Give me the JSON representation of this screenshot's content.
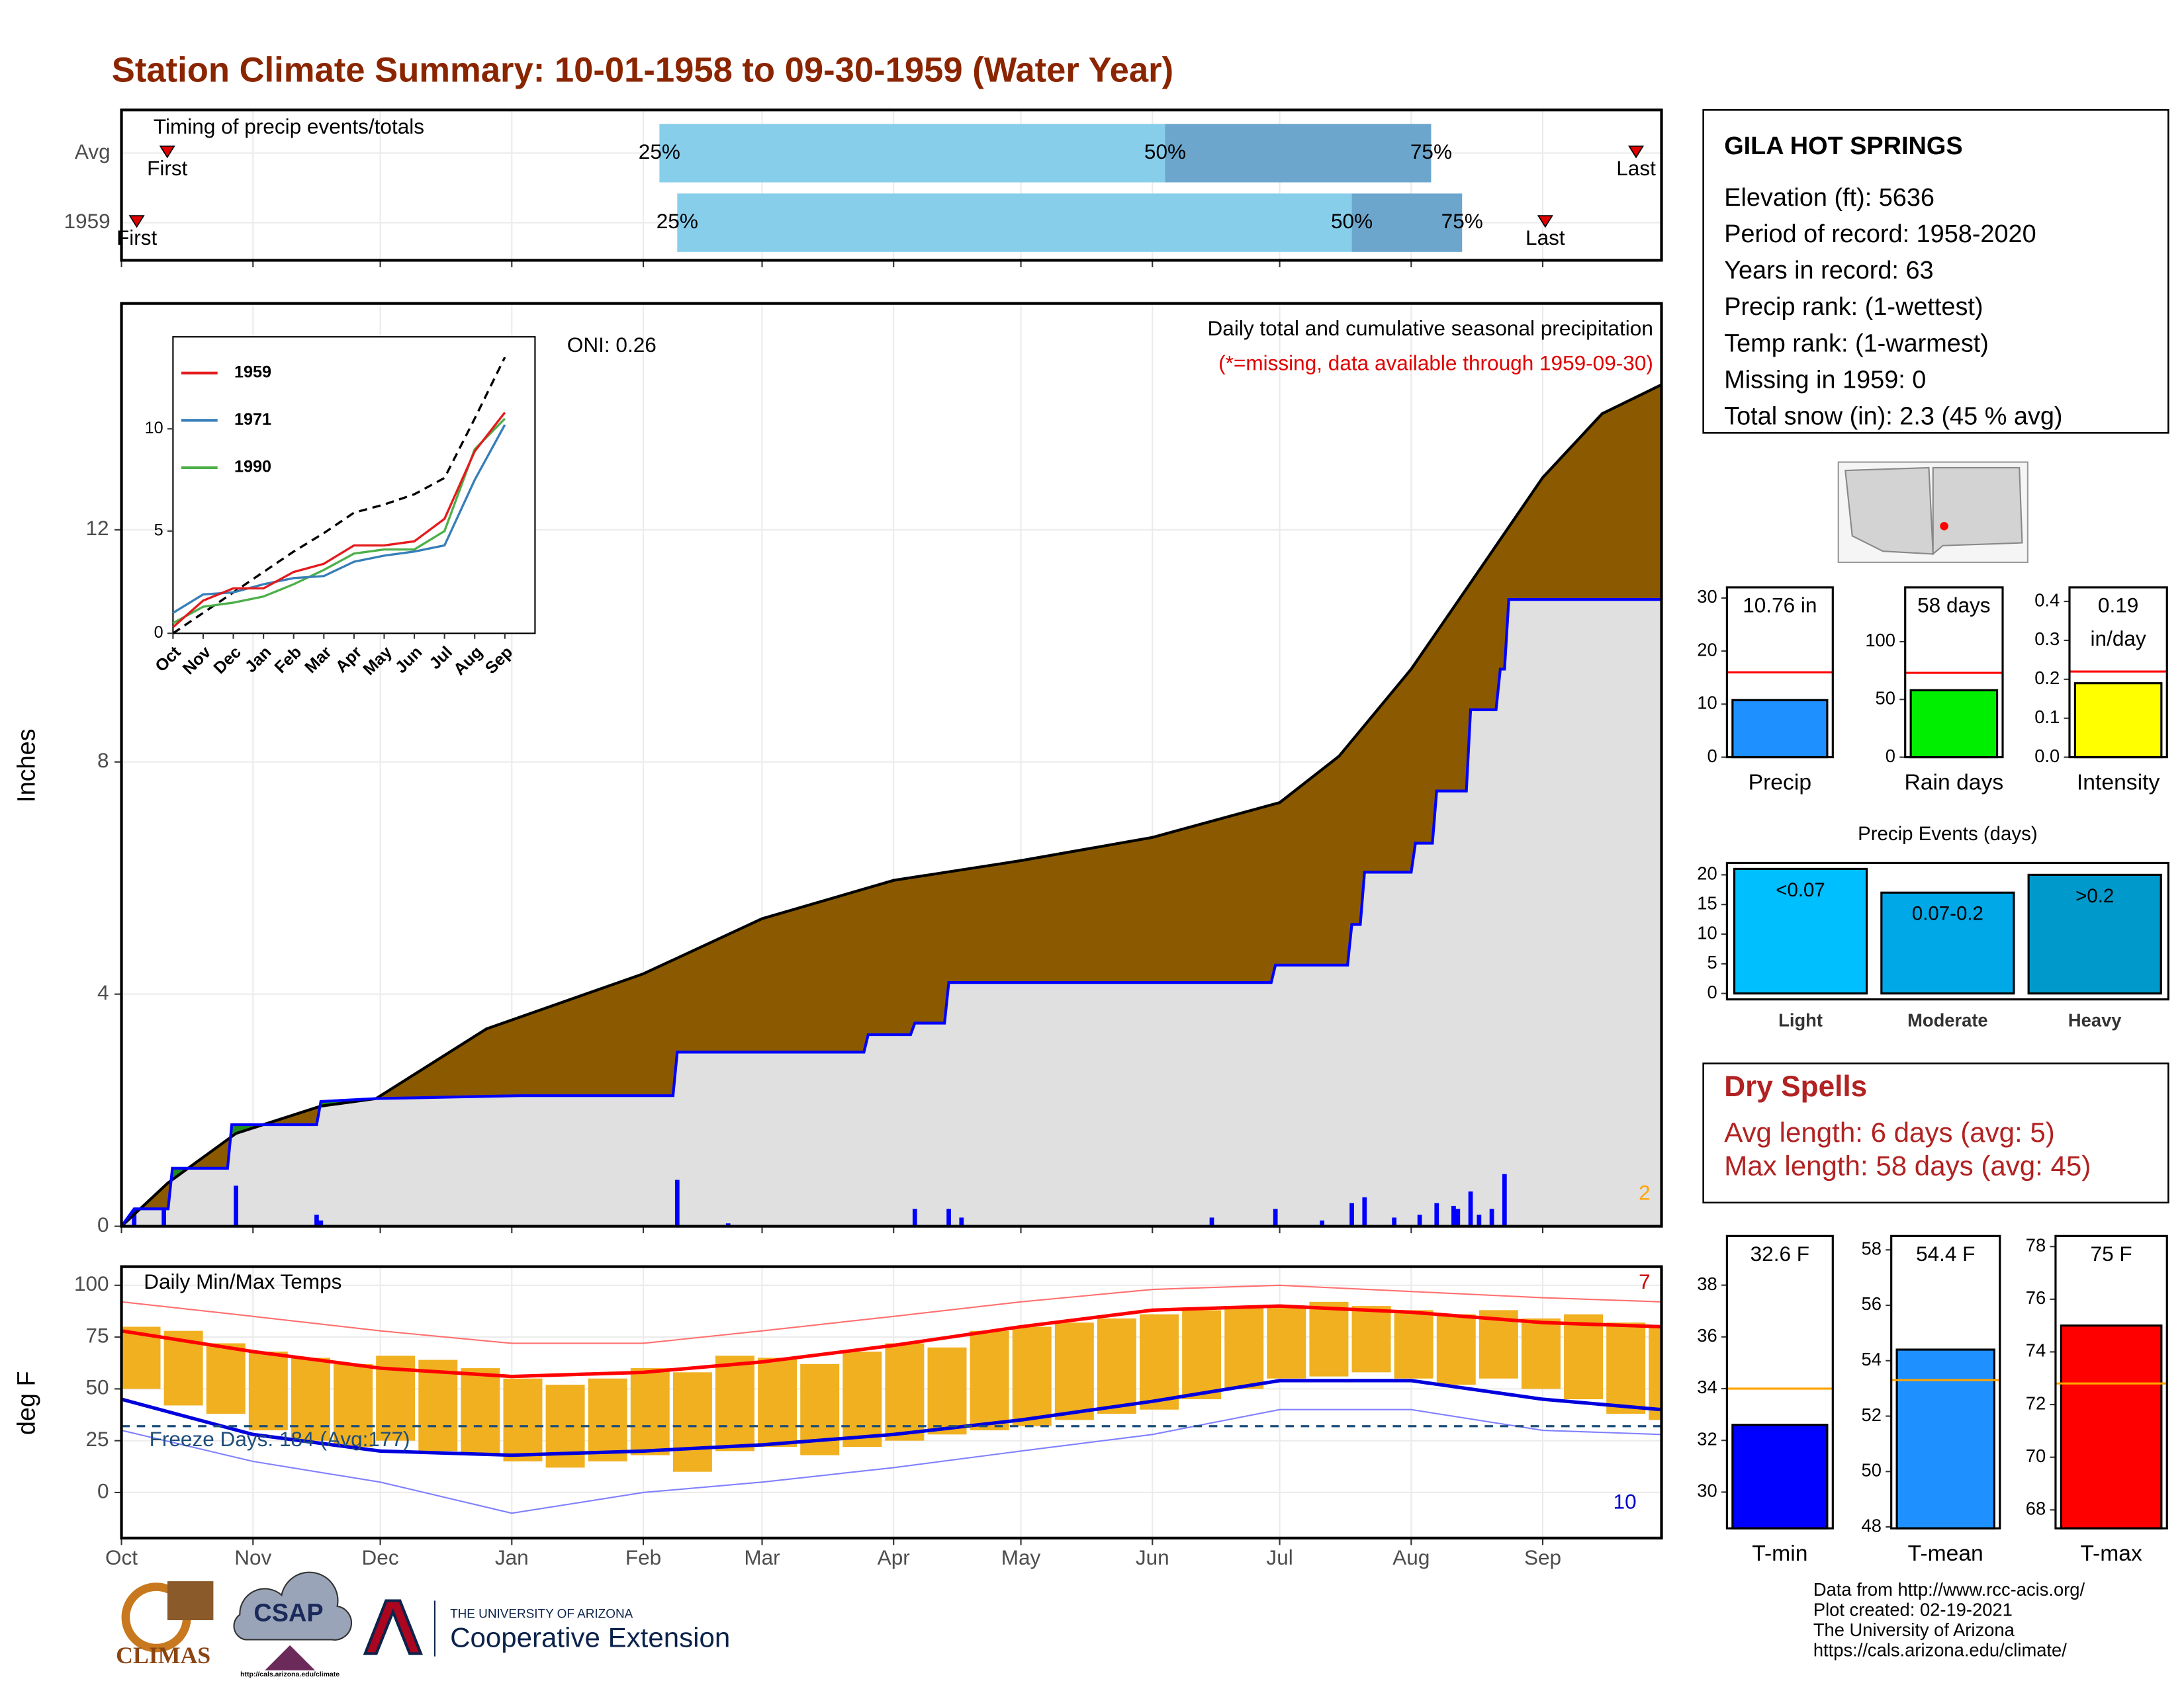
{
  "title": "Station Climate Summary: 10-01-1958 to 09-30-1959 (Water Year)",
  "timing": {
    "title": "Timing of precip events/totals",
    "xlim": [
      0,
      363
    ],
    "labels": {
      "first": "First",
      "p25": "25%",
      "p50": "50%",
      "p75": "75%",
      "last": "Last"
    },
    "rows": [
      {
        "name": "Avg",
        "first": 10.8,
        "p25": 126.8,
        "p50": 246,
        "p75": 308.7,
        "last": 357
      },
      {
        "name": "1959",
        "first": 3.6,
        "p25": 131,
        "p50": 290,
        "p75": 316,
        "last": 335.6
      }
    ]
  },
  "chart_data": [
    {
      "type": "area",
      "title": "Daily total and cumulative seasonal precipitation",
      "subtitle": "(*=missing, data available through 1959-09-30)",
      "annotation": "ONI: 0.26",
      "corner_note": "2",
      "ylabel": "Inches",
      "xlim": [
        0,
        363
      ],
      "xticks": [
        0,
        31,
        61,
        92,
        123,
        151,
        182,
        212,
        243,
        273,
        304,
        335
      ],
      "ylim": [
        0,
        15.9
      ],
      "yticks": [
        0,
        4,
        8,
        12
      ],
      "grid": true,
      "series": [
        {
          "color": "#000000",
          "fill": "#8b5a00",
          "x": [
            0,
            11,
            27,
            47,
            60,
            86,
            123,
            151,
            182,
            212,
            243,
            273,
            287,
            304,
            320,
            335,
            349,
            363
          ],
          "values": [
            0,
            0.75,
            1.6,
            2.07,
            2.2,
            3.4,
            4.35,
            5.3,
            5.96,
            6.3,
            6.7,
            7.3,
            8.1,
            9.6,
            11.3,
            12.9,
            14.0,
            14.5
          ]
        },
        {
          "color": "#0000ff",
          "fill": "#e0e0e0",
          "fill_above": "#1e8c1e",
          "x": [
            0,
            3,
            11,
            12,
            25,
            26,
            46,
            47,
            60,
            94,
            130,
            131,
            175,
            176,
            186,
            187,
            194,
            195,
            250,
            251,
            271,
            272,
            289,
            290,
            292,
            293,
            304,
            305,
            309,
            310,
            317,
            318,
            324,
            325,
            326,
            327,
            363
          ],
          "values": [
            0,
            0.3,
            0.3,
            1.0,
            1.0,
            1.75,
            1.75,
            2.15,
            2.2,
            2.25,
            2.25,
            3.0,
            3.0,
            3.3,
            3.3,
            3.5,
            3.5,
            4.2,
            4.2,
            4.2,
            4.2,
            4.5,
            4.5,
            5.2,
            5.2,
            6.1,
            6.1,
            6.6,
            6.6,
            7.5,
            7.5,
            8.9,
            8.9,
            9.6,
            9.6,
            10.8,
            10.8
          ]
        }
      ],
      "bars": {
        "color": "#0000ff",
        "x": [
          3,
          10,
          27,
          46,
          47,
          131,
          143,
          187,
          195,
          198,
          257,
          272,
          283,
          290,
          293,
          300,
          306,
          310,
          314,
          315,
          318,
          320,
          323,
          326
        ],
        "values": [
          0.3,
          0.3,
          0.7,
          0.2,
          0.1,
          0.8,
          0.05,
          0.3,
          0.3,
          0.15,
          0.15,
          0.3,
          0.1,
          0.4,
          0.5,
          0.15,
          0.2,
          0.4,
          0.35,
          0.3,
          0.6,
          0.2,
          0.3,
          0.9
        ]
      }
    },
    {
      "type": "line",
      "categories": [
        "Oct",
        "Nov",
        "Dec",
        "Jan",
        "Feb",
        "Mar",
        "Apr",
        "May",
        "Jun",
        "Jul",
        "Aug",
        "Sep"
      ],
      "xlim": [
        0,
        12
      ],
      "ylim": [
        0,
        14.5
      ],
      "yticks": [
        0,
        5,
        10
      ],
      "legend": "top-left",
      "series": [
        {
          "name": "1959",
          "color": "#e41a1c",
          "values": [
            0.3,
            1.6,
            2.2,
            2.2,
            3.0,
            3.4,
            4.3,
            4.3,
            4.5,
            5.6,
            8.9,
            10.8
          ]
        },
        {
          "name": "1971",
          "color": "#377eb8",
          "values": [
            1.0,
            1.9,
            2.0,
            2.4,
            2.7,
            2.8,
            3.5,
            3.8,
            4.0,
            4.3,
            7.5,
            10.2
          ]
        },
        {
          "name": "1990",
          "color": "#4daf4a",
          "values": [
            0.5,
            1.3,
            1.5,
            1.8,
            2.4,
            3.1,
            3.9,
            4.1,
            4.1,
            5.0,
            9.0,
            10.5
          ]
        },
        {
          "color": "#000000",
          "dash": true,
          "values": [
            0,
            1.0,
            2.0,
            3.0,
            4.0,
            4.9,
            5.9,
            6.3,
            6.8,
            7.6,
            10.5,
            13.5
          ]
        }
      ]
    },
    {
      "type": "range",
      "title": "Daily Min/Max Temps",
      "annotation": "Freeze Days: 184 (Avg:177)",
      "high_note": "7",
      "low_note": "10",
      "ylabel": "deg F",
      "xlim": [
        0,
        363
      ],
      "xticks": [
        {
          "value": 0,
          "label": "Oct"
        },
        {
          "value": 31,
          "label": "Nov"
        },
        {
          "value": 61,
          "label": "Dec"
        },
        {
          "value": 92,
          "label": "Jan"
        },
        {
          "value": 123,
          "label": "Feb"
        },
        {
          "value": 151,
          "label": "Mar"
        },
        {
          "value": 182,
          "label": "Apr"
        },
        {
          "value": 212,
          "label": "May"
        },
        {
          "value": 243,
          "label": "Jun"
        },
        {
          "value": 273,
          "label": "Jul"
        },
        {
          "value": 304,
          "label": "Aug"
        },
        {
          "value": 335,
          "label": "Sep"
        }
      ],
      "ylim": [
        -22,
        109
      ],
      "yticks": [
        0,
        25,
        50,
        75,
        100
      ],
      "grid": true,
      "freeze_line": 32,
      "obs": {
        "color": "#f0b020",
        "x": [
          0,
          10,
          20,
          30,
          40,
          50,
          60,
          70,
          80,
          90,
          100,
          110,
          120,
          130,
          140,
          150,
          160,
          170,
          180,
          190,
          200,
          210,
          220,
          230,
          240,
          250,
          260,
          270,
          280,
          290,
          300,
          310,
          320,
          330,
          340,
          350,
          360
        ],
        "high": [
          80,
          78,
          72,
          68,
          65,
          62,
          66,
          64,
          60,
          55,
          52,
          55,
          60,
          58,
          66,
          65,
          62,
          68,
          72,
          70,
          78,
          80,
          82,
          84,
          86,
          88,
          90,
          90,
          92,
          90,
          88,
          86,
          88,
          84,
          86,
          82,
          80
        ],
        "low": [
          50,
          42,
          38,
          30,
          25,
          22,
          25,
          20,
          18,
          15,
          12,
          15,
          18,
          10,
          20,
          22,
          18,
          22,
          25,
          28,
          30,
          32,
          35,
          38,
          40,
          45,
          50,
          55,
          56,
          58,
          55,
          52,
          55,
          50,
          45,
          38,
          35
        ]
      },
      "series": [
        {
          "color": "#ff7070",
          "width": 1,
          "x": [
            0,
            31,
            61,
            92,
            123,
            151,
            182,
            212,
            243,
            273,
            304,
            335,
            363
          ],
          "values": [
            92,
            85,
            78,
            72,
            72,
            78,
            85,
            92,
            98,
            100,
            97,
            94,
            92
          ]
        },
        {
          "color": "#8080ff",
          "width": 1,
          "x": [
            0,
            31,
            61,
            92,
            123,
            151,
            182,
            212,
            243,
            273,
            304,
            335,
            363
          ],
          "values": [
            30,
            15,
            5,
            -10,
            0,
            5,
            12,
            20,
            28,
            40,
            40,
            30,
            28
          ]
        },
        {
          "color": "#ff0000",
          "width": 2.5,
          "x": [
            0,
            31,
            61,
            92,
            123,
            151,
            182,
            212,
            243,
            273,
            304,
            335,
            363
          ],
          "values": [
            78,
            68,
            60,
            56,
            58,
            63,
            71,
            80,
            88,
            90,
            87,
            82,
            80
          ]
        },
        {
          "color": "#0000dd",
          "width": 2.5,
          "x": [
            0,
            31,
            61,
            92,
            123,
            151,
            182,
            212,
            243,
            273,
            304,
            335,
            363
          ],
          "values": [
            45,
            28,
            20,
            18,
            20,
            23,
            28,
            35,
            44,
            54,
            54,
            45,
            40
          ]
        }
      ]
    },
    {
      "type": "bar",
      "label": "Precip",
      "values": [
        10.76
      ],
      "value_labels": [
        "10.76 in"
      ],
      "avg": 16,
      "avg_color": "#ff0000",
      "color": "#1e90ff",
      "ylim": [
        0,
        32
      ],
      "yticks": [
        0,
        10,
        20,
        30
      ]
    },
    {
      "type": "bar",
      "label": "Rain days",
      "values": [
        58
      ],
      "value_labels": [
        "58 days"
      ],
      "avg": 73,
      "avg_color": "#ff0000",
      "color": "#00ee00",
      "ylim": [
        0,
        147
      ],
      "yticks": [
        0,
        50,
        100
      ]
    },
    {
      "type": "bar",
      "label": "Intensity",
      "values": [
        0.19
      ],
      "value_labels": [
        "0.19"
      ],
      "unit": "in/day",
      "avg": 0.22,
      "avg_color": "#ff0000",
      "color": "#ffff00",
      "ylim": [
        0,
        0.436
      ],
      "yticks": [
        {
          "value": 0,
          "label": "0.0"
        },
        0.1,
        0.2,
        0.3,
        0.4
      ]
    },
    {
      "type": "bar",
      "title": "Precip Events (days)",
      "categories": [
        "Light",
        "Moderate",
        "Heavy"
      ],
      "class_labels": [
        "<0.07",
        "0.07-0.2",
        ">0.2"
      ],
      "values": [
        21,
        17,
        20
      ],
      "colors": [
        "#00bfff",
        "#00a8e8",
        "#0099cc"
      ],
      "ylim": [
        -1,
        22
      ],
      "yticks": [
        0,
        5,
        10,
        15,
        20
      ]
    },
    {
      "type": "bar",
      "label": "T-min",
      "values": [
        32.6
      ],
      "value_labels": [
        "32.6 F"
      ],
      "avg": 34.0,
      "avg_color": "#ffa500",
      "color": "#0000ff",
      "ylim": [
        28.6,
        39.9
      ],
      "yticks": [
        30,
        32,
        34,
        36,
        38
      ]
    },
    {
      "type": "bar",
      "label": "T-mean",
      "values": [
        54.4
      ],
      "value_labels": [
        "54.4 F"
      ],
      "avg": 53.3,
      "avg_color": "#ffa500",
      "color": "#1e90ff",
      "ylim": [
        47.95,
        58.5
      ],
      "yticks": [
        48,
        50,
        52,
        54,
        56,
        58
      ]
    },
    {
      "type": "bar",
      "label": "T-max",
      "values": [
        75
      ],
      "value_labels": [
        "75 F"
      ],
      "avg": 72.8,
      "avg_color": "#ffa500",
      "color": "#ff0000",
      "ylim": [
        67.3,
        78.4
      ],
      "yticks": [
        68,
        70,
        72,
        74,
        76,
        78
      ]
    }
  ],
  "station": {
    "name": "GILA HOT SPRINGS",
    "lines": [
      "Elevation (ft): 5636",
      "Period of record: 1958-2020",
      "Years in record: 63",
      "Precip rank:  (1-wettest)",
      "Temp rank:  (1-warmest)",
      "Missing in 1959: 0",
      "Total snow (in): 2.3 (45 % avg)"
    ]
  },
  "dry_spells": {
    "title": "Dry Spells",
    "lines": [
      "Avg length: 6 days (avg: 5)",
      "Max length: 58 days (avg: 45)"
    ]
  },
  "credits": [
    "Data from http://www.rcc-acis.org/",
    "Plot created: 02-19-2021",
    "The University of Arizona",
    "https://cals.arizona.edu/climate/"
  ],
  "logos": {
    "climas": "CLIMAS",
    "csap": "CSAP",
    "csap_url": "http://cals.arizona.edu/climate",
    "ua": "THE UNIVERSITY OF ARIZONA",
    "ua_unit": "Cooperative Extension"
  }
}
